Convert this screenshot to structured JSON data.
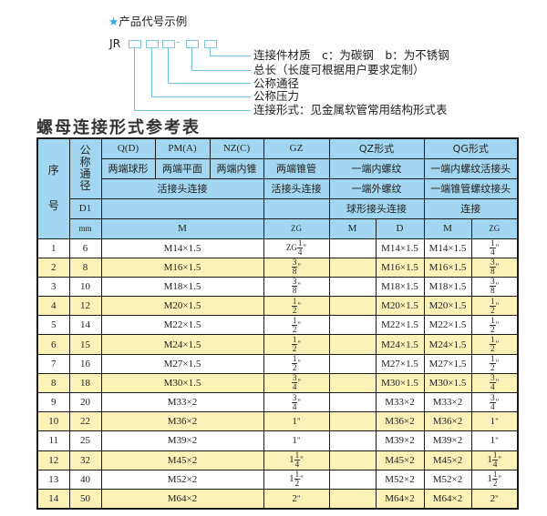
{
  "legend": {
    "heading_star": "★",
    "heading": "产品代号示例",
    "code_prefix": "JR",
    "code_dash": "-",
    "labels": [
      "连接件材质　c：为碳钢　b：为不锈钢",
      "总长（长度可根据用户要求定制）",
      "公称通径",
      "公称压力",
      "连接形式：见金属软管常用结构形式表"
    ]
  },
  "title": "螺母连接形式参考表",
  "colors": {
    "header_bg": "#a3d6f0",
    "stripe": "#fcf2b8",
    "accent": "#6cc0e4"
  },
  "header": {
    "seq_top": "序",
    "seq_bottom": "号",
    "dn": "公称通径",
    "r1": [
      "Q(D)",
      "PM(A)",
      "NZ(C)",
      "GZ",
      "QZ形式",
      "QG形式"
    ],
    "r2": [
      "两端球形",
      "两端平面",
      "两端内锥",
      "两端锥管",
      "一端内螺纹",
      "一端内螺纹活接头"
    ],
    "r3": [
      "活接头连接",
      "活接头连接",
      "一端外螺纹",
      "一端锥管螺纹接头"
    ],
    "r4": [
      "D1",
      "",
      "",
      "球形接头连接",
      "连接"
    ],
    "r5": [
      "mm",
      "M",
      "ZG",
      "M",
      "D",
      "M",
      "ZG"
    ]
  },
  "rows": [
    {
      "no": "1",
      "d1": "6",
      "m": "M14×1.5",
      "zg": {
        "pre": "ZG",
        "whole": "",
        "num": "1",
        "den": "4",
        "suf": "\""
      },
      "qz_m": "",
      "qz_d": "M14×1.5",
      "qg_m": "M14×1.5",
      "qg_zg": {
        "pre": "",
        "whole": "",
        "num": "1",
        "den": "4",
        "suf": "\""
      }
    },
    {
      "no": "2",
      "d1": "8",
      "m": "M16×1.5",
      "zg": {
        "pre": "",
        "whole": "",
        "num": "3",
        "den": "8",
        "suf": "\""
      },
      "qz_m": "",
      "qz_d": "M16×1.5",
      "qg_m": "M16×1.5",
      "qg_zg": {
        "pre": "",
        "whole": "",
        "num": "3",
        "den": "8",
        "suf": "\""
      }
    },
    {
      "no": "3",
      "d1": "10",
      "m": "M18×1.5",
      "zg": {
        "pre": "",
        "whole": "",
        "num": "3",
        "den": "8",
        "suf": "\""
      },
      "qz_m": "",
      "qz_d": "M18×1.5",
      "qg_m": "M18×1.5",
      "qg_zg": {
        "pre": "",
        "whole": "",
        "num": "3",
        "den": "8",
        "suf": "\""
      }
    },
    {
      "no": "4",
      "d1": "12",
      "m": "M20×1.5",
      "zg": {
        "pre": "",
        "whole": "",
        "num": "1",
        "den": "2",
        "suf": "\""
      },
      "qz_m": "",
      "qz_d": "M20×1.5",
      "qg_m": "M20×1.5",
      "qg_zg": {
        "pre": "",
        "whole": "",
        "num": "1",
        "den": "2",
        "suf": "\""
      }
    },
    {
      "no": "5",
      "d1": "14",
      "m": "M22×1.5",
      "zg": {
        "pre": "",
        "whole": "",
        "num": "1",
        "den": "2",
        "suf": "\""
      },
      "qz_m": "",
      "qz_d": "M22×1.5",
      "qg_m": "M22×1.5",
      "qg_zg": {
        "pre": "",
        "whole": "",
        "num": "1",
        "den": "2",
        "suf": "\""
      }
    },
    {
      "no": "6",
      "d1": "15",
      "m": "M24×1.5",
      "zg": {
        "pre": "",
        "whole": "",
        "num": "1",
        "den": "2",
        "suf": "\""
      },
      "qz_m": "",
      "qz_d": "M24×1.5",
      "qg_m": "M24×1.5",
      "qg_zg": {
        "pre": "",
        "whole": "",
        "num": "1",
        "den": "2",
        "suf": "\""
      }
    },
    {
      "no": "7",
      "d1": "16",
      "m": "M27×1.5",
      "zg": {
        "pre": "",
        "whole": "",
        "num": "1",
        "den": "2",
        "suf": "\""
      },
      "qz_m": "",
      "qz_d": "M27×1.5",
      "qg_m": "M27×1.5",
      "qg_zg": {
        "pre": "",
        "whole": "",
        "num": "1",
        "den": "2",
        "suf": "\""
      }
    },
    {
      "no": "8",
      "d1": "18",
      "m": "M30×1.5",
      "zg": {
        "pre": "",
        "whole": "",
        "num": "3",
        "den": "4",
        "suf": "\""
      },
      "qz_m": "",
      "qz_d": "M30×1.5",
      "qg_m": "M30×1.5",
      "qg_zg": {
        "pre": "",
        "whole": "",
        "num": "3",
        "den": "4",
        "suf": "\""
      }
    },
    {
      "no": "9",
      "d1": "20",
      "m": "M33×2",
      "zg": {
        "pre": "",
        "whole": "",
        "num": "3",
        "den": "4",
        "suf": "\""
      },
      "qz_m": "",
      "qz_d": "M33×2",
      "qg_m": "M33×2",
      "qg_zg": {
        "pre": "",
        "whole": "",
        "num": "3",
        "den": "4",
        "suf": "\""
      }
    },
    {
      "no": "10",
      "d1": "22",
      "m": "M36×2",
      "zg": {
        "pre": "",
        "whole": "1",
        "num": "",
        "den": "",
        "suf": "\""
      },
      "qz_m": "",
      "qz_d": "M36×2",
      "qg_m": "M36×2",
      "qg_zg": {
        "pre": "",
        "whole": "1",
        "num": "",
        "den": "",
        "suf": "\""
      }
    },
    {
      "no": "11",
      "d1": "25",
      "m": "M39×2",
      "zg": {
        "pre": "",
        "whole": "1",
        "num": "",
        "den": "",
        "suf": "\""
      },
      "qz_m": "",
      "qz_d": "M39×2",
      "qg_m": "M39×2",
      "qg_zg": {
        "pre": "",
        "whole": "1",
        "num": "",
        "den": "",
        "suf": "\""
      }
    },
    {
      "no": "12",
      "d1": "32",
      "m": "M45×2",
      "zg": {
        "pre": "",
        "whole": "1",
        "num": "1",
        "den": "4",
        "suf": "\""
      },
      "qz_m": "",
      "qz_d": "M45×2",
      "qg_m": "M45×2",
      "qg_zg": {
        "pre": "",
        "whole": "1",
        "num": "1",
        "den": "4",
        "suf": "\""
      }
    },
    {
      "no": "13",
      "d1": "40",
      "m": "M52×2",
      "zg": {
        "pre": "",
        "whole": "1",
        "num": "1",
        "den": "2",
        "suf": "\""
      },
      "qz_m": "",
      "qz_d": "M52×2",
      "qg_m": "M52×2",
      "qg_zg": {
        "pre": "",
        "whole": "1",
        "num": "1",
        "den": "2",
        "suf": "\""
      }
    },
    {
      "no": "14",
      "d1": "50",
      "m": "M64×2",
      "zg": {
        "pre": "",
        "whole": "2",
        "num": "",
        "den": "",
        "suf": "\""
      },
      "qz_m": "",
      "qz_d": "M64×2",
      "qg_m": "M64×2",
      "qg_zg": {
        "pre": "",
        "whole": "2",
        "num": "",
        "den": "",
        "suf": "\""
      }
    }
  ]
}
